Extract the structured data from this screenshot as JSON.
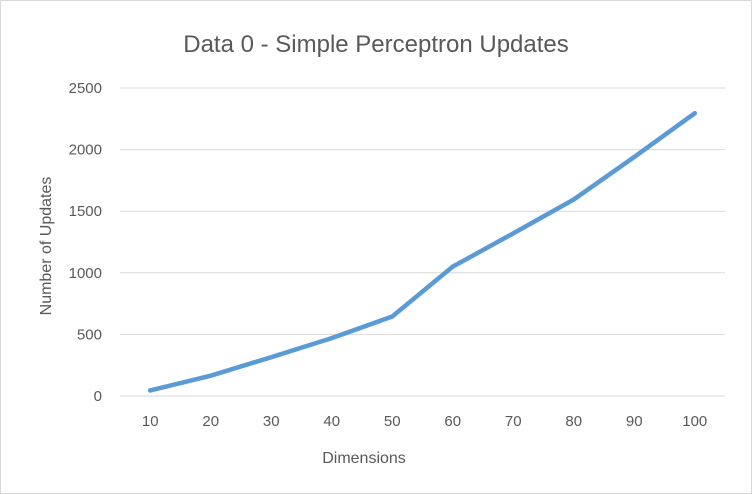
{
  "chart_data": {
    "type": "line",
    "title": "Data 0 - Simple Perceptron Updates",
    "xlabel": "Dimensions",
    "ylabel": "Number of Updates",
    "categories": [
      10,
      20,
      30,
      40,
      50,
      60,
      70,
      80,
      90,
      100
    ],
    "x_tick_labels": [
      "10",
      "20",
      "30",
      "40",
      "50",
      "60",
      "70",
      "80",
      "90",
      "100"
    ],
    "y_tick_labels": [
      "0",
      "500",
      "1000",
      "1500",
      "2000",
      "2500"
    ],
    "ylim": [
      0,
      2500
    ],
    "y_ticks": [
      0,
      500,
      1000,
      1500,
      2000,
      2500
    ],
    "grid": true,
    "legend": "none",
    "series": [
      {
        "values": [
          45,
          165,
          315,
          470,
          645,
          1050,
          1320,
          1595,
          1940,
          2295
        ],
        "color": "#5b9bd5"
      }
    ]
  }
}
